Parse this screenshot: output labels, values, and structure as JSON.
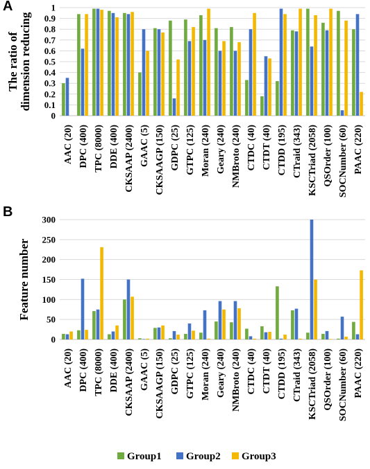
{
  "colors": {
    "Group1": "#6fab3e",
    "Group2": "#4472c4",
    "Group3": "#f5b800",
    "grid": "#d9d9d9",
    "axis": "#bfbfbf"
  },
  "categories": [
    "AAC (20)",
    "DPC (400)",
    "TPC (8000)",
    "DDE (400)",
    "CKSAAP (2400)",
    "GAAC (5)",
    "CKSAAGP (150)",
    "GDPC (25)",
    "GTPC (125)",
    "Moran (240)",
    "Geary (240)",
    "NMBroto (240)",
    "CTDC (40)",
    "CTDT (40)",
    "CTDD (195)",
    "CTraid (343)",
    "KSCTriad (2058)",
    "QSOrder (100)",
    "SOCNumber (60)",
    "PAAC (220)"
  ],
  "legend": [
    "Group1",
    "Group2",
    "Group3"
  ],
  "chart_data": [
    {
      "type": "bar",
      "panel": "A",
      "ylabel": [
        "The ratio of",
        "dimension reducing"
      ],
      "ylim": [
        0,
        1
      ],
      "yticks": [
        "0",
        "0.1",
        "0.2",
        "0.3",
        "0.4",
        "0.5",
        "0.6",
        "0.7",
        "0.8",
        "0.9",
        "1"
      ],
      "grid": true,
      "series": [
        {
          "name": "Group1",
          "values": [
            0.3,
            0.94,
            0.99,
            0.97,
            0.95,
            0.4,
            0.81,
            0.88,
            0.89,
            0.93,
            0.81,
            0.82,
            0.33,
            0.18,
            0.32,
            0.79,
            0.99,
            0.86,
            0.97,
            0.8
          ]
        },
        {
          "name": "Group2",
          "values": [
            0.35,
            0.62,
            0.99,
            0.95,
            0.94,
            0.8,
            0.8,
            0.16,
            0.69,
            0.7,
            0.6,
            0.6,
            0.8,
            0.55,
            0.99,
            0.78,
            0.64,
            0.79,
            0.05,
            0.94
          ]
        },
        {
          "name": "Group3",
          "values": [
            0.0,
            0.94,
            0.98,
            0.91,
            0.96,
            0.6,
            0.77,
            0.52,
            0.82,
            0.99,
            0.69,
            0.68,
            0.95,
            0.53,
            0.94,
            0.99,
            0.93,
            0.99,
            0.88,
            0.22
          ]
        }
      ]
    },
    {
      "type": "bar",
      "panel": "B",
      "ylabel": [
        "Feature number"
      ],
      "ylim": [
        0,
        300
      ],
      "yticks": [
        "0",
        "50",
        "100",
        "150",
        "200",
        "250",
        "300"
      ],
      "grid": true,
      "series": [
        {
          "name": "Group1",
          "values": [
            14,
            23,
            71,
            13,
            100,
            3,
            29,
            3,
            14,
            17,
            45,
            43,
            27,
            33,
            133,
            73,
            17,
            14,
            2,
            44
          ]
        },
        {
          "name": "Group2",
          "values": [
            13,
            152,
            75,
            20,
            150,
            1,
            30,
            21,
            40,
            73,
            96,
            96,
            8,
            18,
            2,
            77,
            300,
            21,
            57,
            13
          ]
        },
        {
          "name": "Group3",
          "values": [
            20,
            24,
            231,
            35,
            107,
            2,
            35,
            12,
            22,
            2,
            75,
            78,
            2,
            19,
            12,
            2,
            150,
            1,
            7,
            173
          ]
        }
      ]
    }
  ]
}
